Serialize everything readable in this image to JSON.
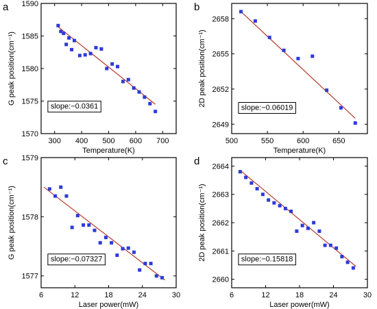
{
  "chart_data": [
    {
      "panel_letter": "a",
      "type": "scatter",
      "xlabel": "Temperature(K)",
      "ylabel": "G peak position(cm⁻¹)",
      "xlim": [
        250,
        750
      ],
      "ylim": [
        1570,
        1590
      ],
      "xticks": [
        300,
        400,
        500,
        600,
        700
      ],
      "yticks": [
        1570,
        1575,
        1580,
        1585,
        1590
      ],
      "x": [
        313,
        323,
        333,
        343,
        353,
        363,
        373,
        393,
        413,
        433,
        453,
        473,
        493,
        513,
        533,
        553,
        573,
        593,
        613,
        633,
        653,
        673
      ],
      "y": [
        1586.6,
        1585.7,
        1585.4,
        1583.7,
        1584.7,
        1582.9,
        1584.3,
        1582.0,
        1582.1,
        1582.3,
        1583.2,
        1583.0,
        1580.0,
        1580.7,
        1580.3,
        1578.0,
        1578.3,
        1577.0,
        1576.4,
        1575.6,
        1574.6,
        1573.4
      ],
      "fit": {
        "x": [
          313,
          673
        ],
        "y": [
          1586.4,
          1574.5
        ]
      },
      "annotation": "slope:−0.0361",
      "ann_pos": [
        0.05,
        0.26
      ]
    },
    {
      "panel_letter": "b",
      "type": "scatter",
      "xlabel": "Temperature(K)",
      "ylabel": "2D peak position(cm⁻¹)",
      "xlim": [
        500,
        690
      ],
      "ylim": [
        2648.2,
        2659.3
      ],
      "xticks": [
        500,
        550,
        600,
        650
      ],
      "yticks": [
        2649,
        2652,
        2655,
        2658
      ],
      "x": [
        513,
        533,
        553,
        573,
        593,
        613,
        633,
        653,
        673
      ],
      "y": [
        2658.6,
        2657.8,
        2656.4,
        2655.3,
        2654.6,
        2654.8,
        2651.9,
        2650.4,
        2649.1
      ],
      "fit": {
        "x": [
          513,
          673
        ],
        "y": [
          2658.6,
          2649.5
        ]
      },
      "annotation": "slope:−0.06019",
      "ann_pos": [
        0.05,
        0.25
      ]
    },
    {
      "panel_letter": "c",
      "type": "scatter",
      "xlabel": "Laser power(mW)",
      "ylabel": "G peak position(cm⁻¹)",
      "xlim": [
        6,
        30
      ],
      "ylim": [
        1576.8,
        1579.0
      ],
      "xticks": [
        6,
        12,
        18,
        24,
        30
      ],
      "yticks": [
        1577,
        1578,
        1579
      ],
      "x": [
        7.5,
        8.5,
        9.5,
        10.5,
        11.5,
        12.5,
        13.5,
        14.5,
        15.5,
        16.5,
        17.5,
        18.5,
        19.5,
        20.5,
        21.5,
        22.5,
        23.5,
        24.5,
        25.5,
        26.5,
        27.5
      ],
      "y": [
        1578.47,
        1578.35,
        1578.5,
        1578.35,
        1577.82,
        1578.02,
        1577.86,
        1577.86,
        1577.77,
        1577.56,
        1577.65,
        1577.56,
        1577.35,
        1577.46,
        1577.47,
        1577.4,
        1577.1,
        1577.21,
        1577.21,
        1577.0,
        1576.97
      ],
      "fit": {
        "x": [
          6.5,
          28
        ],
        "y": [
          1578.5,
          1576.93
        ]
      },
      "annotation": "slope:−0.07327",
      "ann_pos": [
        0.05,
        0.27
      ]
    },
    {
      "panel_letter": "d",
      "type": "scatter",
      "xlabel": "Laser power(mW)",
      "ylabel": "2D peak position(cm⁻¹)",
      "xlim": [
        6,
        30
      ],
      "ylim": [
        2659.7,
        2664.3
      ],
      "xticks": [
        6,
        12,
        18,
        24,
        30
      ],
      "yticks": [
        2660,
        2661,
        2662,
        2663,
        2664
      ],
      "x": [
        7.5,
        8.5,
        9.5,
        10.5,
        11.5,
        12.5,
        13.5,
        14.5,
        15.5,
        16.5,
        17.5,
        18.5,
        19.5,
        20.5,
        21.5,
        22.5,
        23.5,
        24.5,
        25.5,
        26.5,
        27.5
      ],
      "y": [
        2663.8,
        2663.6,
        2663.4,
        2663.2,
        2663.0,
        2662.8,
        2662.7,
        2662.6,
        2662.5,
        2662.4,
        2661.7,
        2661.9,
        2661.8,
        2662.0,
        2661.7,
        2661.2,
        2661.2,
        2661.1,
        2660.8,
        2660.6,
        2660.4
      ],
      "fit": {
        "x": [
          7.5,
          28
        ],
        "y": [
          2663.85,
          2660.45
        ]
      },
      "annotation": "slope:−0.15818",
      "ann_pos": [
        0.05,
        0.27
      ]
    }
  ],
  "colors": {
    "marker": "#2e3ad8",
    "fit_line": "#b43a2a",
    "axis": "#000000"
  }
}
